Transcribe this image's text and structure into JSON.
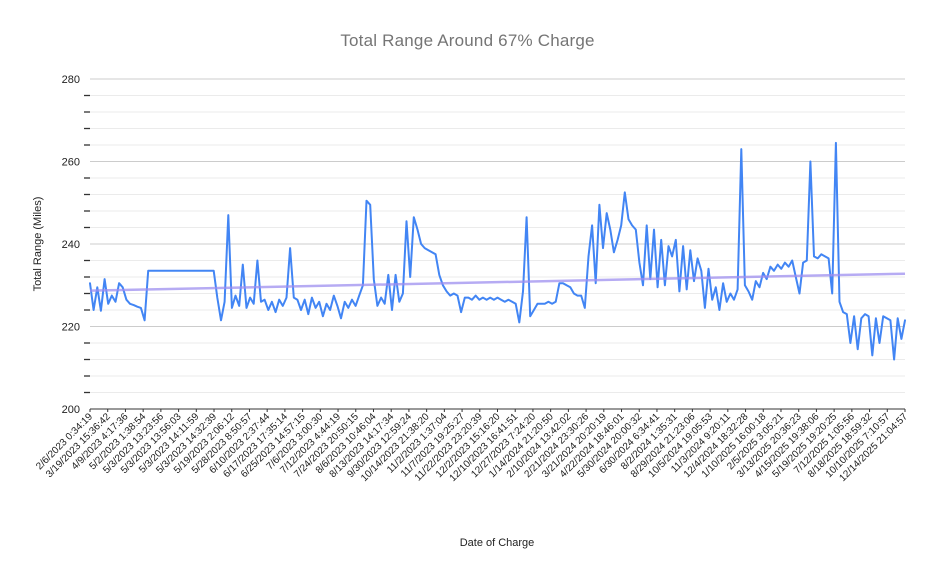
{
  "chart_data": {
    "type": "line",
    "title": "Total Range Around 67% Charge",
    "xlabel": "Date of Charge",
    "ylabel": "Total Range (Miles)",
    "ylim": [
      200,
      280
    ],
    "y_major_ticks": [
      280,
      260,
      240,
      220,
      200
    ],
    "y_minor_step": 4,
    "grid": true,
    "legend": "none",
    "x_tick_labels": [
      "2/6/2023 0:34:19",
      "3/19/2023 15:36:42",
      "4/9/2023 4:17:36",
      "5/2/2023 1:38:54",
      "5/3/2023 13:23:56",
      "5/3/2023 13:56:03",
      "5/3/2023 14:11:59",
      "5/3/2023 14:32:39",
      "5/19/2023 2:06:12",
      "5/28/2023 8:50:57",
      "6/10/2023 2:37:44",
      "6/17/2023 17:35:14",
      "6/25/2023 14:57:15",
      "7/6/2023 3:00:30",
      "7/12/2023 4:44:19",
      "7/24/2023 20:50:15",
      "8/6/2023 10:46:04",
      "8/13/2023 14:17:34",
      "9/30/2023 12:59:24",
      "10/14/2023 21:38:20",
      "11/2/2023 1:37:04",
      "11/7/2023 19:25:27",
      "11/22/2023 23:20:39",
      "12/2/2023 15:16:20",
      "12/10/2023 16:41:51",
      "12/27/2023 7:24:20",
      "1/14/2024 21:20:50",
      "2/10/2024 13:42:02",
      "2/21/2024 23:30:26",
      "3/21/2024 20:20:19",
      "4/22/2024 18:46:01",
      "5/30/2024 20:00:32",
      "6/30/2024 6:34:41",
      "8/2/2024 1:35:31",
      "8/29/2024 21:23:06",
      "10/5/2024 19:05:53",
      "11/3/2024 9:20:11",
      "12/4/2024 18:32:28",
      "1/10/2025 16:00:18",
      "2/5/2025 3:05:21",
      "3/13/2025 20:36:23",
      "4/15/2025 19:38:06",
      "5/19/2025 19:20:25",
      "7/12/2025 1:05:56",
      "8/18/2025 18:59:32",
      "10/10/2025 7:10:57",
      "12/14/2025 21:04:57"
    ],
    "series": [
      {
        "name": "Total Range",
        "color": "#4285f4",
        "values": [
          230.5,
          224,
          229.5,
          223.8,
          231.5,
          225.5,
          227.5,
          226,
          230.5,
          229.5,
          226.5,
          225.5,
          225.2,
          224.8,
          224.5,
          221.5,
          233.5,
          233.5,
          233.5,
          233.5,
          233.5,
          233.5,
          233.5,
          233.5,
          233.5,
          233.5,
          233.5,
          233.5,
          233.5,
          233.5,
          233.5,
          233.5,
          233.5,
          233.5,
          233.5,
          227,
          221.5,
          226,
          247,
          224.5,
          227.5,
          225,
          235,
          224.5,
          227,
          225.5,
          236,
          226,
          226.5,
          224,
          226,
          223.5,
          226.5,
          225,
          227,
          239,
          227,
          226.5,
          224,
          226.5,
          223,
          227,
          224.5,
          226,
          222.5,
          225.5,
          224,
          227.5,
          225,
          222,
          226,
          224.5,
          226.5,
          225,
          227.5,
          230,
          250.5,
          249.5,
          231.5,
          225,
          227,
          225.5,
          232.5,
          224,
          232.5,
          226,
          228,
          245.5,
          232,
          246.5,
          243.5,
          240,
          239,
          238.5,
          238,
          237.5,
          232.5,
          230,
          228.5,
          227.5,
          228,
          227.5,
          223.5,
          227,
          227,
          226.5,
          227.5,
          226.5,
          227,
          226.5,
          227,
          226.5,
          227,
          226.5,
          226,
          226.5,
          226,
          225.5,
          221,
          228.5,
          246.5,
          222.5,
          224,
          225.5,
          225.5,
          225.5,
          226,
          225.5,
          226,
          230.5,
          230.5,
          230,
          229.5,
          228,
          227.5,
          227.5,
          224.5,
          237,
          244.5,
          230.5,
          249.5,
          239,
          247.5,
          243.5,
          238,
          241,
          244.5,
          252.5,
          246,
          244.5,
          243.5,
          235.5,
          230,
          244.5,
          231.5,
          243.5,
          229.5,
          241,
          230,
          239.5,
          237,
          241,
          228.5,
          239.5,
          229,
          238.5,
          231,
          236.5,
          233.5,
          224.5,
          234,
          226.5,
          229.5,
          224,
          230.5,
          226,
          228,
          226.5,
          229,
          263,
          230,
          228.5,
          226.5,
          231,
          229.5,
          233,
          231.5,
          234.5,
          233.5,
          235,
          234,
          235.5,
          234.5,
          236,
          232,
          228,
          235.5,
          236,
          260,
          237,
          236.5,
          237.5,
          237,
          236.5,
          228,
          264.5,
          226,
          223.5,
          223,
          216,
          222.5,
          214.5,
          222,
          223,
          222.5,
          213,
          222,
          216,
          222.5,
          222,
          221.5,
          212,
          222,
          217,
          221.5
        ]
      },
      {
        "name": "Linear trendline",
        "color": "#9e8ff0",
        "start": 228.7,
        "end": 232.8
      }
    ]
  }
}
